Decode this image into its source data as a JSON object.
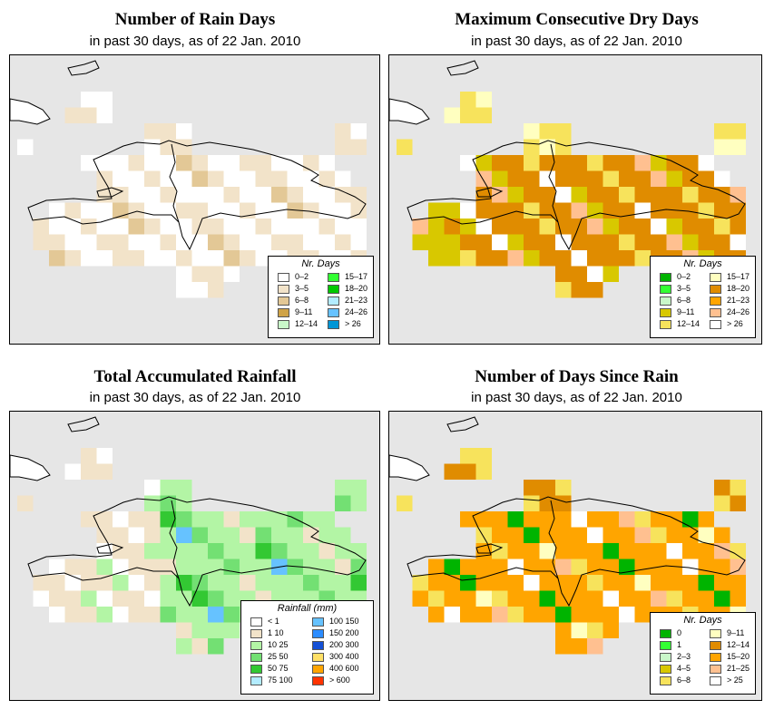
{
  "panels": [
    {
      "id": "rain-days",
      "title": "Number of Rain Days",
      "subtitle": "in past 30 days, as of  22 Jan. 2010",
      "legend": {
        "title": "Nr. Days",
        "items": [
          {
            "label": "0–2",
            "color": "#ffffff"
          },
          {
            "label": "3–5",
            "color": "#f2e3c9"
          },
          {
            "label": "6–8",
            "color": "#e3c896"
          },
          {
            "label": "9–11",
            "color": "#cfa347"
          },
          {
            "label": "12–14",
            "color": "#c9f7c9"
          },
          {
            "label": "15–17",
            "color": "#33ff33"
          },
          {
            "label": "18–20",
            "color": "#00c800"
          },
          {
            "label": "21–23",
            "color": "#b3ecff"
          },
          {
            "label": "24–26",
            "color": "#66c2ff"
          },
          {
            "label": "> 26",
            "color": "#0096d6"
          }
        ]
      }
    },
    {
      "id": "dry-days",
      "title": "Maximum Consecutive Dry Days",
      "subtitle": "in past 30 days, as of  22 Jan. 2010",
      "legend": {
        "title": "Nr. Days",
        "items": [
          {
            "label": "0–2",
            "color": "#00b400"
          },
          {
            "label": "3–5",
            "color": "#33ff33"
          },
          {
            "label": "6–8",
            "color": "#c9f7c9"
          },
          {
            "label": "9–11",
            "color": "#d8c800"
          },
          {
            "label": "12–14",
            "color": "#f7e35c"
          },
          {
            "label": "15–17",
            "color": "#ffffc0"
          },
          {
            "label": "18–20",
            "color": "#e08c00"
          },
          {
            "label": "21–23",
            "color": "#ffa500"
          },
          {
            "label": "24–26",
            "color": "#ffc090"
          },
          {
            "label": "> 26",
            "color": "#ffffff"
          }
        ]
      }
    },
    {
      "id": "rainfall",
      "title": "Total Accumulated Rainfall",
      "subtitle": "in past 30 days, as of  22 Jan. 2010",
      "legend": {
        "title": "Rainfall (mm)",
        "items": [
          {
            "label": "< 1",
            "color": "#ffffff"
          },
          {
            "label": "1    10",
            "color": "#f2e3c9"
          },
          {
            "label": "10    25",
            "color": "#b3f5a5"
          },
          {
            "label": "25    50",
            "color": "#73e073"
          },
          {
            "label": "50    75",
            "color": "#33c833"
          },
          {
            "label": "75   100",
            "color": "#b3ecff"
          },
          {
            "label": "100   150",
            "color": "#66c2ff"
          },
          {
            "label": "150   200",
            "color": "#2b8cff"
          },
          {
            "label": "200   300",
            "color": "#1450d6"
          },
          {
            "label": "300   400",
            "color": "#ffe066"
          },
          {
            "label": "400   600",
            "color": "#ffa500"
          },
          {
            "label": "> 600",
            "color": "#ff3300"
          }
        ]
      }
    },
    {
      "id": "days-since-rain",
      "title": "Number of Days Since Rain",
      "subtitle": "in past 30 days, as of  22 Jan. 2010",
      "legend": {
        "title": "Nr. Days",
        "items": [
          {
            "label": "0",
            "color": "#00b400"
          },
          {
            "label": "1",
            "color": "#33ff33"
          },
          {
            "label": "2–3",
            "color": "#c9f7c9"
          },
          {
            "label": "4–5",
            "color": "#d8c800"
          },
          {
            "label": "6–8",
            "color": "#f7e35c"
          },
          {
            "label": "9–11",
            "color": "#ffffc0"
          },
          {
            "label": "12–14",
            "color": "#e08c00"
          },
          {
            "label": "15–20",
            "color": "#ffa500"
          },
          {
            "label": "21–25",
            "color": "#ffc090"
          },
          {
            "label": "> 25",
            "color": "#ffffff"
          }
        ]
      }
    }
  ]
}
